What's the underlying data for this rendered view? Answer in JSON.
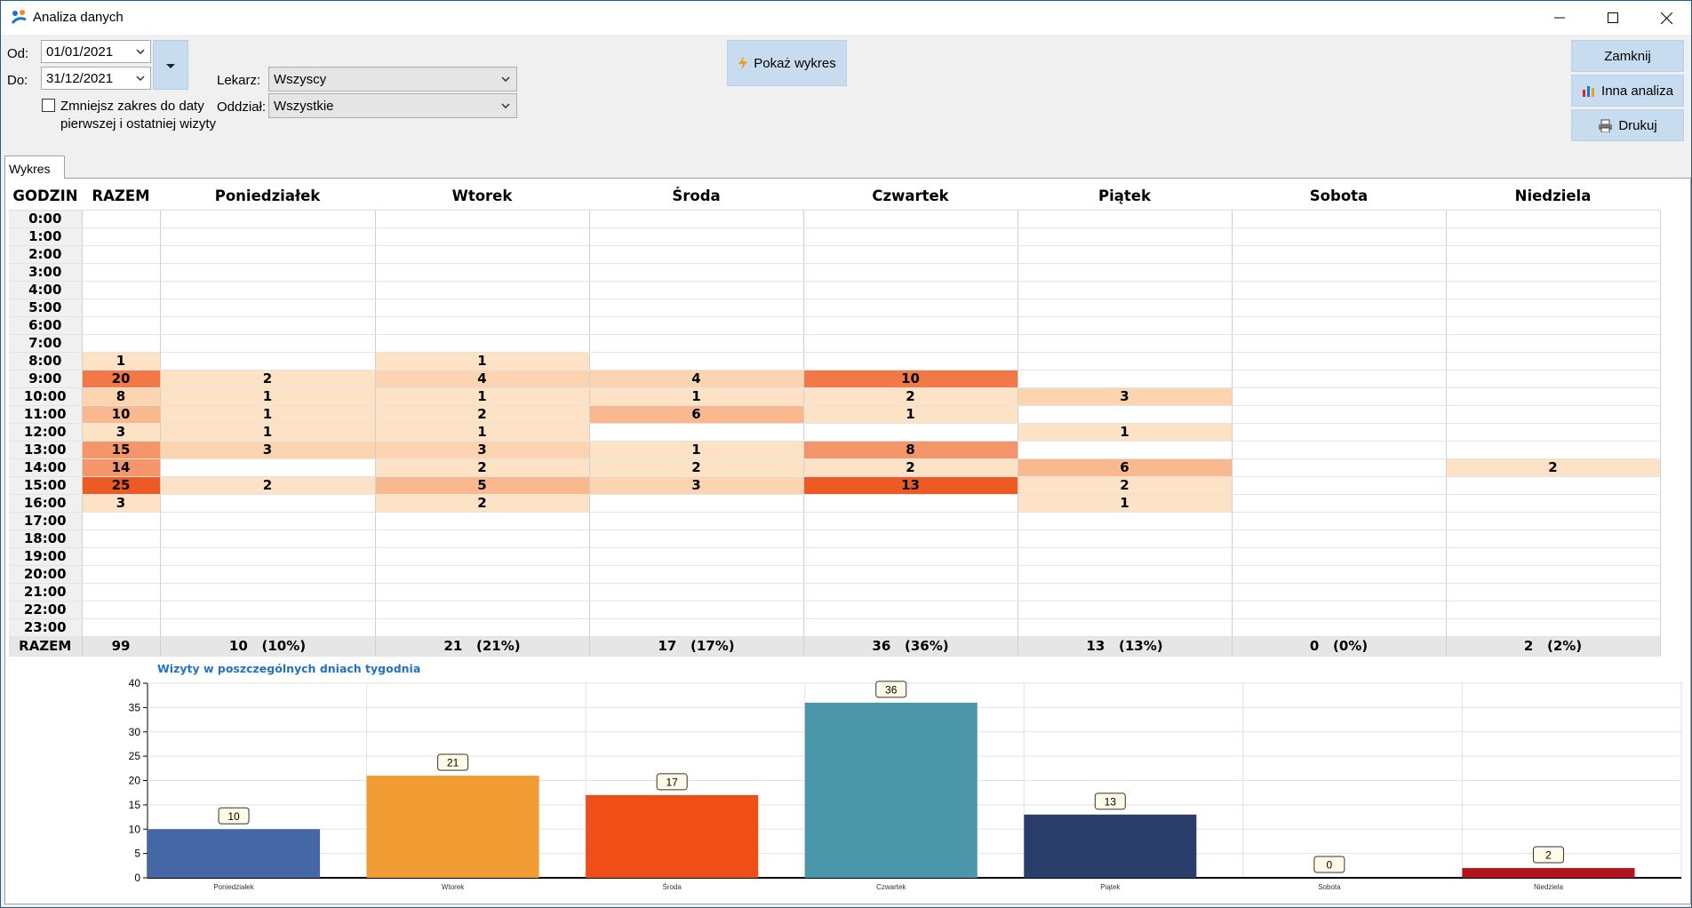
{
  "window": {
    "title": "Analiza danych"
  },
  "filters": {
    "from_label": "Od:",
    "from_value": "01/01/2021",
    "to_label": "Do:",
    "to_value": "31/12/2021",
    "narrow_range_label_1": "Zmniejsz zakres do daty",
    "narrow_range_label_2": "pierwszej i ostatniej wizyty",
    "narrow_range_checked": false,
    "doctor_label": "Lekarz:",
    "doctor_value": "Wszyscy",
    "dept_label": "Oddział:",
    "dept_value": "Wszystkie"
  },
  "buttons": {
    "show_chart": "Pokaż wykres",
    "close": "Zamknij",
    "other_analysis": "Inna analiza",
    "print": "Drukuj"
  },
  "tabs": [
    "Wykres"
  ],
  "grid": {
    "headers": [
      "GODZIN",
      "RAZEM",
      "Poniedziałek",
      "Wtorek",
      "Środa",
      "Czwartek",
      "Piątek",
      "Sobota",
      "Niedziela"
    ],
    "rows": [
      [
        "0:00",
        "",
        "",
        "",
        "",
        "",
        "",
        "",
        ""
      ],
      [
        "1:00",
        "",
        "",
        "",
        "",
        "",
        "",
        "",
        ""
      ],
      [
        "2:00",
        "",
        "",
        "",
        "",
        "",
        "",
        "",
        ""
      ],
      [
        "3:00",
        "",
        "",
        "",
        "",
        "",
        "",
        "",
        ""
      ],
      [
        "4:00",
        "",
        "",
        "",
        "",
        "",
        "",
        "",
        ""
      ],
      [
        "5:00",
        "",
        "",
        "",
        "",
        "",
        "",
        "",
        ""
      ],
      [
        "6:00",
        "",
        "",
        "",
        "",
        "",
        "",
        "",
        ""
      ],
      [
        "7:00",
        "",
        "",
        "",
        "",
        "",
        "",
        "",
        ""
      ],
      [
        "8:00",
        "1",
        "",
        "1",
        "",
        "",
        "",
        "",
        ""
      ],
      [
        "9:00",
        "20",
        "2",
        "4",
        "4",
        "10",
        "",
        "",
        ""
      ],
      [
        "10:00",
        "8",
        "1",
        "1",
        "1",
        "2",
        "3",
        "",
        ""
      ],
      [
        "11:00",
        "10",
        "1",
        "2",
        "6",
        "1",
        "",
        "",
        ""
      ],
      [
        "12:00",
        "3",
        "1",
        "1",
        "",
        "",
        "1",
        "",
        ""
      ],
      [
        "13:00",
        "15",
        "3",
        "3",
        "1",
        "8",
        "",
        "",
        ""
      ],
      [
        "14:00",
        "14",
        "",
        "2",
        "2",
        "2",
        "6",
        "",
        "2"
      ],
      [
        "15:00",
        "25",
        "2",
        "5",
        "3",
        "13",
        "2",
        "",
        ""
      ],
      [
        "16:00",
        "3",
        "",
        "2",
        "",
        "",
        "1",
        "",
        ""
      ],
      [
        "17:00",
        "",
        "",
        "",
        "",
        "",
        "",
        "",
        ""
      ],
      [
        "18:00",
        "",
        "",
        "",
        "",
        "",
        "",
        "",
        ""
      ],
      [
        "19:00",
        "",
        "",
        "",
        "",
        "",
        "",
        "",
        ""
      ],
      [
        "20:00",
        "",
        "",
        "",
        "",
        "",
        "",
        "",
        ""
      ],
      [
        "21:00",
        "",
        "",
        "",
        "",
        "",
        "",
        "",
        ""
      ],
      [
        "22:00",
        "",
        "",
        "",
        "",
        "",
        "",
        "",
        ""
      ],
      [
        "23:00",
        "",
        "",
        "",
        "",
        "",
        "",
        "",
        ""
      ]
    ],
    "totals": [
      "RAZEM",
      "99",
      "10   (10%)",
      "21   (21%)",
      "17   (17%)",
      "36   (36%)",
      "13   (13%)",
      "0   (0%)",
      "2   (2%)"
    ]
  },
  "chart_data": {
    "type": "bar",
    "title": "Wizyty w poszczególnych dniach tygodnia",
    "categories": [
      "Poniedziałek",
      "Wtorek",
      "Środa",
      "Czwartek",
      "Piątek",
      "Sobota",
      "Niedziela"
    ],
    "values": [
      10,
      21,
      17,
      36,
      13,
      0,
      2
    ],
    "colors": [
      "#4567a6",
      "#f29d33",
      "#ef4f17",
      "#4b97a9",
      "#2b3e6b",
      "#2b3e6b",
      "#b3131a"
    ],
    "ylim": [
      0,
      40
    ],
    "yticks": [
      0,
      5,
      10,
      15,
      20,
      25,
      30,
      35,
      40
    ],
    "grid": true,
    "xlabel": "",
    "ylabel": ""
  }
}
